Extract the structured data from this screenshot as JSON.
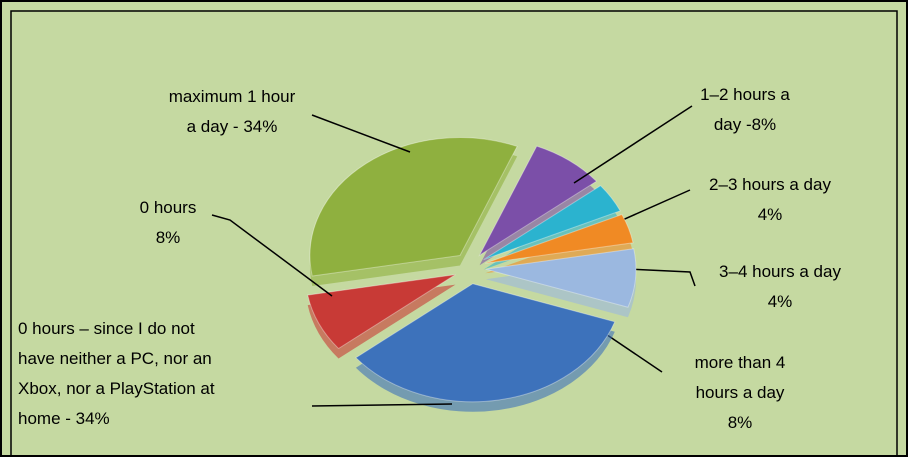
{
  "chart_data": {
    "type": "pie",
    "categories": [
      "maximum 1 hour\na day - 34%",
      "1–2 hours a\nday -8%",
      "2–3 hours a day\n4%",
      "3–4 hours a day\n4%",
      "more than 4\nhours a day\n8%",
      "0 hours – since I do not\nhave neither a PC, nor an\nXbox, nor a PlayStation at\nhome  - 34%",
      "0 hours\n8%"
    ],
    "values": [
      34,
      8,
      4,
      4,
      8,
      34,
      8
    ],
    "colors": [
      "#8fb03f",
      "#7b4fa8",
      "#2bb3cf",
      "#f08a24",
      "#9bb8e0",
      "#3d72bb",
      "#c83a36"
    ]
  }
}
